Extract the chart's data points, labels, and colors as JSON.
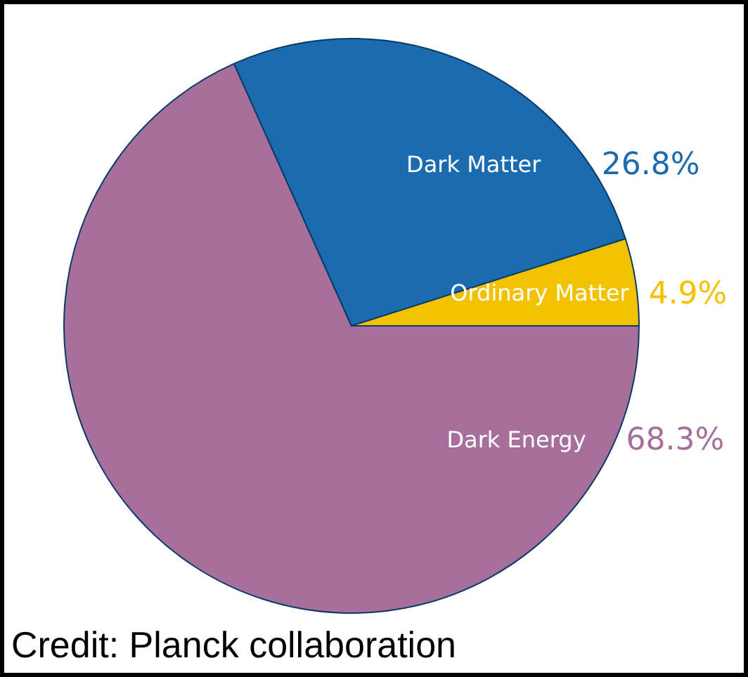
{
  "chart_data": {
    "type": "pie",
    "categories": [
      "Dark Energy",
      "Dark Matter",
      "Ordinary Matter"
    ],
    "values": [
      68.3,
      26.8,
      4.9
    ],
    "value_labels": [
      "68.3%",
      "26.8%",
      "4.9%"
    ],
    "colors": [
      "#a66f9c",
      "#1b6bb0",
      "#f2c200"
    ],
    "annotations": [
      "Credit: Planck collaboration"
    ]
  }
}
